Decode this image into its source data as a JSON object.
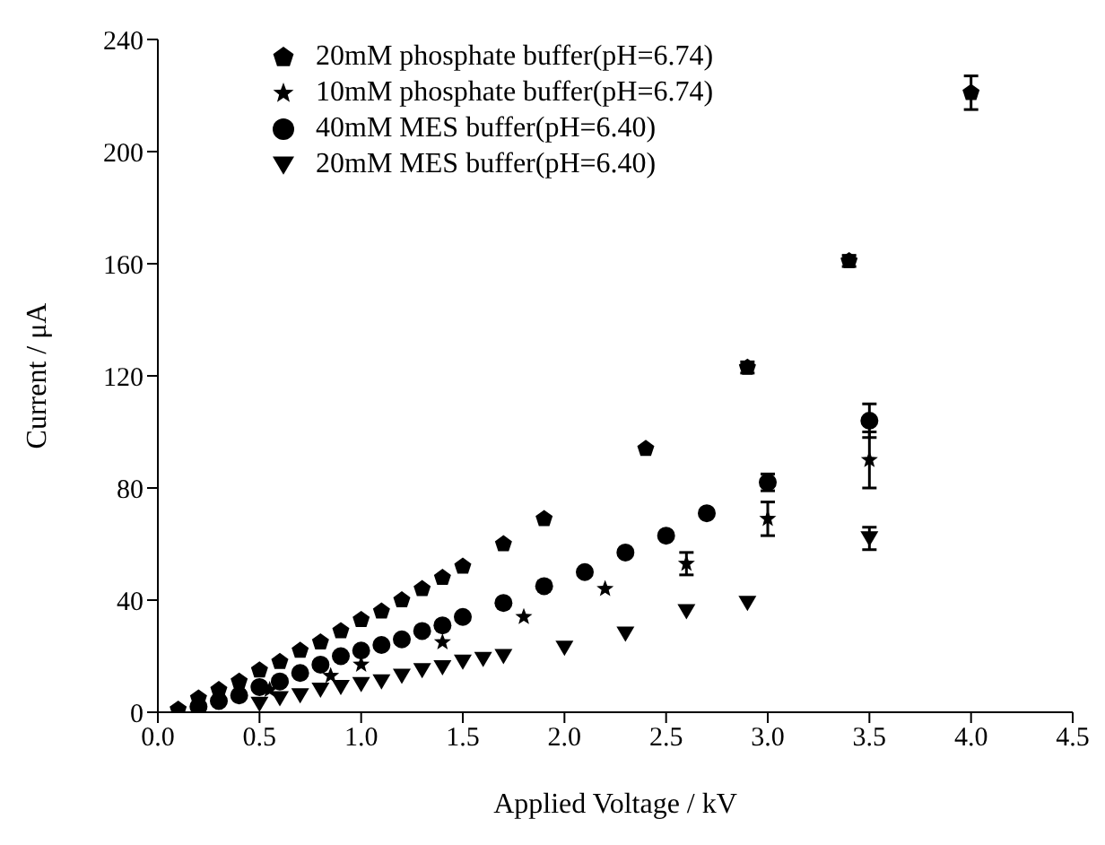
{
  "chart_data": {
    "type": "scatter",
    "xlabel": "Applied Voltage / kV",
    "ylabel": "Current / μA",
    "xlim": [
      0,
      4.5
    ],
    "xticks": [
      {
        "value": 0,
        "label": "0.0"
      },
      0.5,
      {
        "value": 1,
        "label": "1.0"
      },
      1.5,
      {
        "value": 2,
        "label": "2.0"
      },
      2.5,
      {
        "value": 3,
        "label": "3.0"
      },
      3.5,
      {
        "value": 4,
        "label": "4.0"
      },
      4.5
    ],
    "ylim": [
      0,
      240
    ],
    "yticks": [
      0,
      40,
      80,
      120,
      160,
      200,
      240
    ],
    "grid": false,
    "legend": "top left",
    "series": [
      {
        "name": "20mM phosphate buffer(pH=6.74)",
        "color": "#000000",
        "x": [
          0.1,
          0.2,
          0.3,
          0.4,
          0.5,
          0.6,
          0.7,
          0.8,
          0.9,
          1.0,
          1.1,
          1.2,
          1.3,
          1.4,
          1.5,
          1.7,
          1.9,
          2.4,
          2.9,
          3.4,
          4.0
        ],
        "values": [
          1,
          5,
          8,
          11,
          15,
          18,
          22,
          25,
          29,
          33,
          36,
          40,
          44,
          48,
          52,
          60,
          69,
          94,
          123,
          161,
          221
        ],
        "errors": [
          null,
          null,
          null,
          null,
          null,
          null,
          null,
          null,
          null,
          null,
          null,
          null,
          null,
          null,
          null,
          null,
          null,
          null,
          2,
          2,
          6
        ]
      },
      {
        "name": "10mM phosphate buffer(pH=6.74)",
        "color": "#000000",
        "marker": "star",
        "x": [
          0.55,
          0.85,
          1.0,
          1.4,
          1.8,
          2.2,
          2.6,
          3.0,
          3.5
        ],
        "values": [
          8,
          13,
          17,
          25,
          34,
          44,
          53,
          69,
          90
        ],
        "errors": [
          null,
          null,
          null,
          null,
          null,
          null,
          4,
          6,
          10
        ]
      },
      {
        "name": "40mM MES buffer(pH=6.40)",
        "color": "#000000",
        "marker": "circle",
        "x": [
          0.2,
          0.3,
          0.4,
          0.5,
          0.6,
          0.7,
          0.8,
          0.9,
          1.0,
          1.1,
          1.2,
          1.3,
          1.4,
          1.5,
          1.7,
          1.9,
          2.1,
          2.3,
          2.5,
          2.7,
          3.0,
          3.5
        ],
        "values": [
          2,
          4,
          6,
          9,
          11,
          14,
          17,
          20,
          22,
          24,
          26,
          29,
          31,
          34,
          39,
          45,
          50,
          57,
          63,
          71,
          82,
          104
        ],
        "errors": [
          null,
          null,
          null,
          null,
          null,
          null,
          null,
          null,
          null,
          null,
          null,
          null,
          null,
          null,
          null,
          null,
          null,
          null,
          null,
          null,
          3,
          6
        ]
      },
      {
        "name": "20mM MES buffer(pH=6.40)",
        "color": "#000000",
        "marker": "triangle",
        "x": [
          0.5,
          0.6,
          0.7,
          0.8,
          0.9,
          1.0,
          1.1,
          1.2,
          1.3,
          1.4,
          1.5,
          1.6,
          1.7,
          2.0,
          2.3,
          2.6,
          2.9,
          3.5
        ],
        "values": [
          3,
          5,
          6,
          8,
          9,
          10,
          11,
          13,
          15,
          16,
          18,
          19,
          20,
          23,
          28,
          36,
          39,
          62
        ],
        "errors": [
          null,
          null,
          null,
          null,
          null,
          null,
          null,
          null,
          null,
          null,
          null,
          null,
          null,
          null,
          null,
          null,
          null,
          4
        ]
      }
    ]
  }
}
